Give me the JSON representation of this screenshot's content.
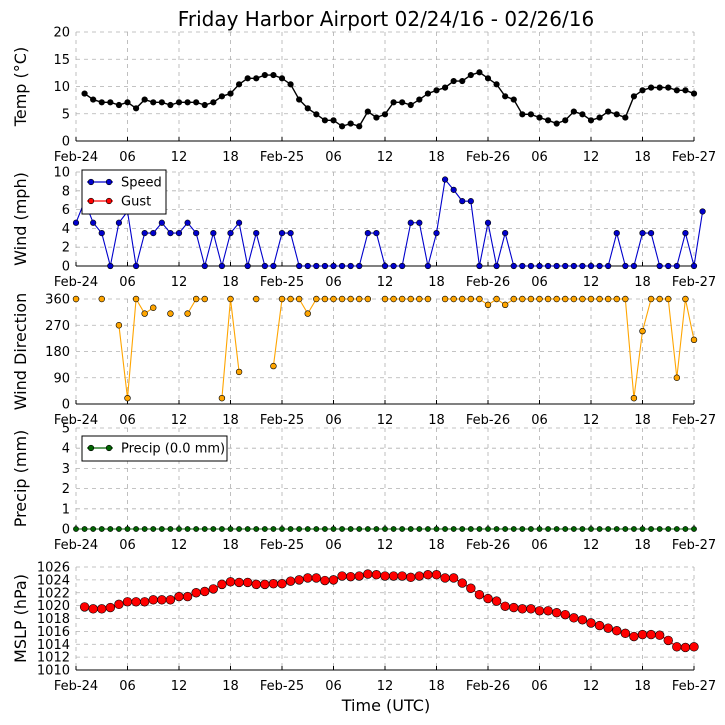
{
  "title": "Friday Harbor Airport 02/24/16 - 02/26/16",
  "xlabel": "Time (UTC)",
  "x_tick_labels": [
    "Feb-24",
    "06",
    "12",
    "18",
    "Feb-25",
    "06",
    "12",
    "18",
    "Feb-26",
    "06",
    "12",
    "18",
    "Feb-27"
  ],
  "x_tick_hours": [
    0,
    6,
    12,
    18,
    24,
    30,
    36,
    42,
    48,
    54,
    60,
    66,
    72
  ],
  "colors": {
    "temp": "#000000",
    "speed": "#0000cc",
    "gust": "#ff0000",
    "direction": "#ffa500",
    "precip": "#006400",
    "mslp": "#ff0000",
    "grid": "#b0b0b0"
  },
  "chart_data": [
    {
      "id": "temp",
      "type": "line",
      "ylabel": "Temp (°C)",
      "ylim": [
        0,
        20
      ],
      "yticks": [
        0,
        5,
        10,
        15,
        20
      ],
      "series": [
        {
          "name": "Temp",
          "color": "#000000",
          "x_start": 1,
          "x_step": 1,
          "values": [
            8.7,
            7.6,
            7.1,
            7.1,
            6.6,
            7.1,
            6.0,
            7.6,
            7.1,
            7.1,
            6.6,
            7.1,
            7.1,
            7.1,
            6.6,
            7.1,
            8.2,
            8.7,
            10.4,
            11.5,
            11.5,
            12.1,
            12.1,
            11.5,
            10.4,
            7.6,
            6.0,
            4.9,
            3.8,
            3.8,
            2.7,
            3.2,
            2.7,
            5.4,
            4.3,
            4.9,
            7.1,
            7.1,
            6.6,
            7.6,
            8.7,
            9.3,
            9.8,
            11.0,
            11.0,
            12.1,
            12.6,
            11.5,
            10.4,
            8.2,
            7.6,
            4.9,
            4.9,
            4.3,
            3.8,
            3.2,
            3.8,
            5.4,
            4.9,
            3.8,
            4.3,
            5.4,
            4.9,
            4.3,
            8.2,
            9.3,
            9.8,
            9.8,
            9.8,
            9.3,
            9.3,
            8.7
          ]
        }
      ]
    },
    {
      "id": "wind",
      "type": "line",
      "ylabel": "Wind (mph)",
      "ylim": [
        0,
        10
      ],
      "yticks": [
        0,
        2,
        4,
        6,
        8,
        10
      ],
      "legend": "top-left",
      "series": [
        {
          "name": "Speed",
          "color": "#0000cc",
          "x_start": 0,
          "x_step": 1,
          "values": [
            4.6,
            6.9,
            4.6,
            3.5,
            0,
            4.6,
            5.8,
            0,
            3.5,
            3.5,
            4.6,
            3.5,
            3.5,
            4.6,
            3.5,
            0,
            3.5,
            0,
            3.5,
            4.6,
            0,
            3.5,
            0,
            0,
            3.5,
            3.5,
            0,
            0,
            0,
            0,
            0,
            0,
            0,
            0,
            3.5,
            3.5,
            0,
            0,
            0,
            4.6,
            4.6,
            0,
            3.5,
            9.2,
            8.1,
            6.9,
            6.9,
            0,
            4.6,
            0,
            3.5,
            0,
            0,
            0,
            0,
            0,
            0,
            0,
            0,
            0,
            0,
            0,
            0,
            3.5,
            0,
            0,
            3.5,
            3.5,
            0,
            0,
            0,
            3.5,
            0,
            5.8
          ]
        },
        {
          "name": "Gust",
          "color": "#ff0000",
          "values": []
        }
      ]
    },
    {
      "id": "direction",
      "type": "line",
      "ylabel": "Wind Direction",
      "ylim": [
        0,
        360
      ],
      "yticks": [
        0,
        90,
        180,
        270,
        360
      ],
      "series": [
        {
          "name": "Direction",
          "color": "#ffa500",
          "x_start": 0,
          "x_step": 1,
          "values": [
            360,
            null,
            null,
            360,
            null,
            270,
            20,
            360,
            310,
            330,
            null,
            310,
            null,
            310,
            360,
            360,
            null,
            20,
            360,
            110,
            null,
            360,
            null,
            130,
            360,
            360,
            360,
            310,
            360,
            360,
            360,
            360,
            360,
            360,
            360,
            null,
            360,
            360,
            360,
            360,
            360,
            360,
            null,
            360,
            360,
            360,
            360,
            360,
            340,
            360,
            340,
            360,
            360,
            360,
            360,
            360,
            360,
            360,
            360,
            360,
            360,
            360,
            360,
            360,
            360,
            20,
            250,
            360,
            360,
            360,
            90,
            360,
            220
          ]
        }
      ]
    },
    {
      "id": "precip",
      "type": "line",
      "ylabel": "Precip (mm)",
      "ylim": [
        0,
        5
      ],
      "yticks": [
        0,
        1,
        2,
        3,
        4,
        5
      ],
      "legend": "top-left",
      "series": [
        {
          "name": "Precip (0.0 mm)",
          "color": "#006400",
          "x_start": 0,
          "x_step": 1,
          "values": [
            0,
            0,
            0,
            0,
            0,
            0,
            0,
            0,
            0,
            0,
            0,
            0,
            0,
            0,
            0,
            0,
            0,
            0,
            0,
            0,
            0,
            0,
            0,
            0,
            0,
            0,
            0,
            0,
            0,
            0,
            0,
            0,
            0,
            0,
            0,
            0,
            0,
            0,
            0,
            0,
            0,
            0,
            0,
            0,
            0,
            0,
            0,
            0,
            0,
            0,
            0,
            0,
            0,
            0,
            0,
            0,
            0,
            0,
            0,
            0,
            0,
            0,
            0,
            0,
            0,
            0,
            0,
            0,
            0,
            0,
            0,
            0,
            0
          ]
        }
      ]
    },
    {
      "id": "mslp",
      "type": "line",
      "ylabel": "MSLP (hPa)",
      "ylim": [
        1010,
        1026
      ],
      "yticks": [
        1010,
        1012,
        1014,
        1016,
        1018,
        1020,
        1022,
        1024,
        1026
      ],
      "series": [
        {
          "name": "MSLP",
          "color": "#ff0000",
          "x_start": 1,
          "x_step": 1,
          "values": [
            1019.8,
            1019.5,
            1019.5,
            1019.7,
            1020.2,
            1020.6,
            1020.6,
            1020.6,
            1020.9,
            1020.9,
            1020.9,
            1021.4,
            1021.4,
            1022.0,
            1022.2,
            1022.6,
            1023.3,
            1023.7,
            1023.6,
            1023.6,
            1023.3,
            1023.3,
            1023.4,
            1023.4,
            1023.8,
            1024.0,
            1024.3,
            1024.3,
            1023.9,
            1024.0,
            1024.6,
            1024.5,
            1024.6,
            1024.9,
            1024.8,
            1024.6,
            1024.6,
            1024.6,
            1024.4,
            1024.6,
            1024.8,
            1024.8,
            1024.3,
            1024.3,
            1023.5,
            1022.7,
            1021.7,
            1021.1,
            1020.7,
            1019.9,
            1019.7,
            1019.5,
            1019.5,
            1019.2,
            1019.2,
            1018.9,
            1018.6,
            1018.1,
            1017.8,
            1017.3,
            1016.9,
            1016.5,
            1016.1,
            1015.7,
            1015.2,
            1015.5,
            1015.5,
            1015.4,
            1014.6,
            1013.6,
            1013.5,
            1013.6
          ]
        }
      ]
    }
  ]
}
